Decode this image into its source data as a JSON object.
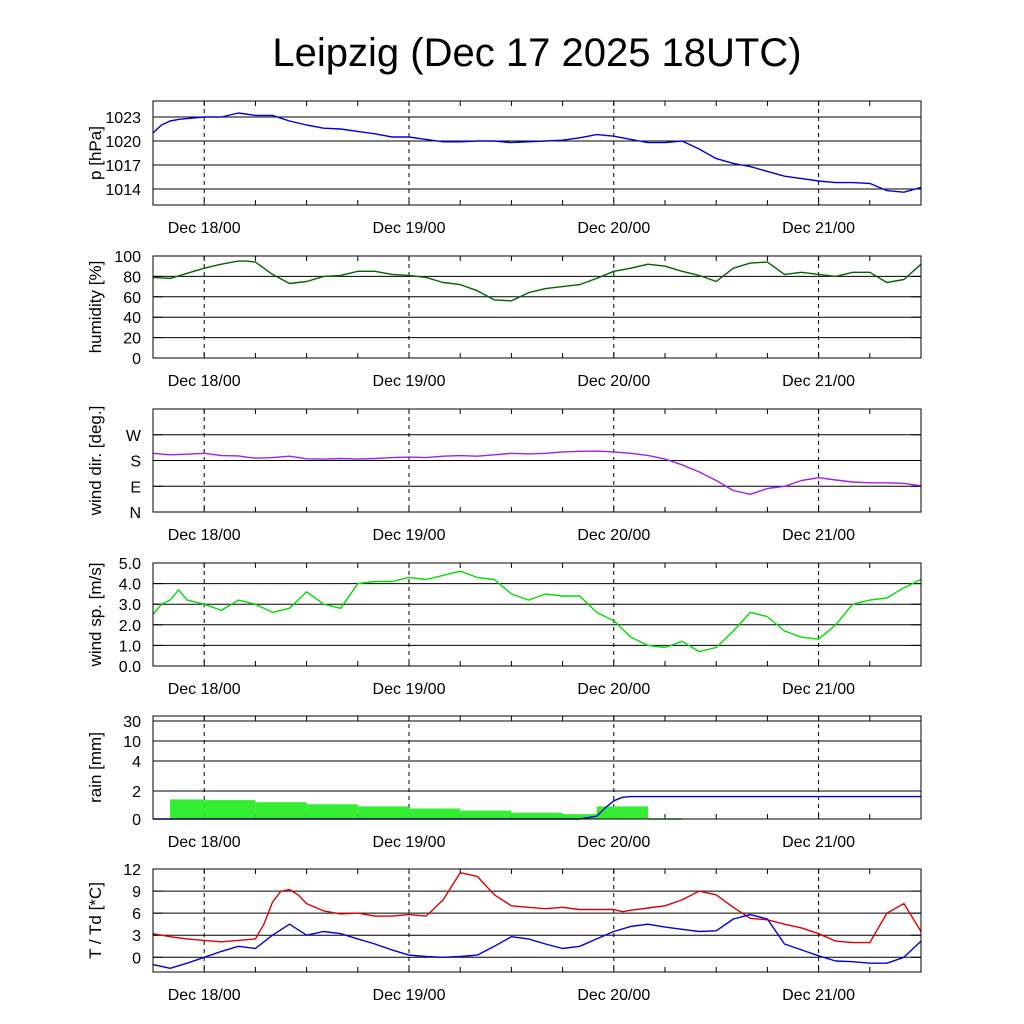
{
  "title": "Leipzig (Dec 17 2025 18UTC)",
  "colors": {
    "pressure": "#0000dd",
    "humidity": "#006400",
    "wind_dir": "#a020f0",
    "wind_speed": "#00dd00",
    "rain_bars": "#33ee33",
    "rain_cum": "#0000dd",
    "temperature": "#dd0000",
    "dewpoint": "#0000dd"
  },
  "chart_data": [
    {
      "id": "pressure",
      "type": "line",
      "ylabel": "p [hPa]",
      "ylim": [
        1012,
        1025
      ],
      "yticks": [
        1014,
        1017,
        1020,
        1023
      ],
      "ytick_labels": [
        "1014",
        "1017",
        "1020",
        "1023"
      ],
      "xlabel": "",
      "x_range_hours": [
        -6,
        84
      ],
      "x_ticks": [
        0,
        24,
        48,
        72
      ],
      "x_tick_labels": [
        "Dec 18/00",
        "Dec 19/00",
        "Dec 20/00",
        "Dec 21/00"
      ],
      "series": [
        {
          "name": "pressure",
          "color_key": "pressure",
          "x": [
            -6,
            -5,
            -4,
            -3,
            -2,
            0,
            2,
            4,
            6,
            8,
            10,
            12,
            14,
            16,
            18,
            20,
            22,
            24,
            26,
            28,
            30,
            32,
            34,
            36,
            38,
            40,
            42,
            44,
            46,
            48,
            50,
            52,
            54,
            56,
            58,
            60,
            62,
            64,
            66,
            68,
            70,
            72,
            74,
            76,
            78,
            80,
            82,
            84
          ],
          "values": [
            1021.0,
            1022.0,
            1022.5,
            1022.7,
            1022.8,
            1023.0,
            1023.0,
            1023.5,
            1023.2,
            1023.2,
            1022.5,
            1022.0,
            1021.6,
            1021.5,
            1021.2,
            1020.9,
            1020.5,
            1020.5,
            1020.2,
            1019.9,
            1019.9,
            1020.0,
            1020.0,
            1019.8,
            1019.9,
            1020.0,
            1020.1,
            1020.4,
            1020.8,
            1020.6,
            1020.2,
            1019.8,
            1019.8,
            1020.0,
            1019.0,
            1017.8,
            1017.2,
            1016.8,
            1016.2,
            1015.6,
            1015.3,
            1015.0,
            1014.8,
            1014.8,
            1014.7,
            1013.8,
            1013.6,
            1014.2
          ]
        }
      ]
    },
    {
      "id": "humidity",
      "type": "line",
      "ylabel": "humidity [%]",
      "ylim": [
        0,
        100
      ],
      "yticks": [
        0,
        20,
        40,
        60,
        80,
        100
      ],
      "ytick_labels": [
        "0",
        "20",
        "40",
        "60",
        "80",
        "100"
      ],
      "x_range_hours": [
        -6,
        84
      ],
      "x_ticks": [
        0,
        24,
        48,
        72
      ],
      "x_tick_labels": [
        "Dec 18/00",
        "Dec 19/00",
        "Dec 20/00",
        "Dec 21/00"
      ],
      "series": [
        {
          "name": "humidity",
          "color_key": "humidity",
          "x": [
            -6,
            -4,
            -2,
            0,
            2,
            4,
            5,
            6,
            8,
            10,
            12,
            14,
            16,
            18,
            20,
            22,
            24,
            26,
            28,
            30,
            32,
            34,
            36,
            38,
            40,
            42,
            44,
            46,
            48,
            50,
            52,
            54,
            56,
            58,
            60,
            62,
            64,
            66,
            68,
            70,
            72,
            74,
            76,
            78,
            80,
            82,
            84
          ],
          "values": [
            79,
            78,
            83,
            88,
            92,
            95,
            95,
            94,
            82,
            73,
            75,
            80,
            81,
            85,
            85,
            82,
            81,
            79,
            74,
            72,
            66,
            57,
            56,
            64,
            68,
            70,
            72,
            78,
            85,
            88,
            92,
            90,
            85,
            81,
            75,
            88,
            93,
            94,
            82,
            84,
            82,
            80,
            84,
            84,
            74,
            77,
            92
          ]
        }
      ]
    },
    {
      "id": "wind_dir",
      "type": "line",
      "ylabel": "wind dir. [deg.]",
      "ylim": [
        0,
        360
      ],
      "yticks": [
        0,
        90,
        180,
        270
      ],
      "ytick_labels": [
        "N",
        "E",
        "S",
        "W"
      ],
      "x_range_hours": [
        -6,
        84
      ],
      "x_ticks": [
        0,
        24,
        48,
        72
      ],
      "x_tick_labels": [
        "Dec 18/00",
        "Dec 19/00",
        "Dec 20/00",
        "Dec 21/00"
      ],
      "series": [
        {
          "name": "wind direction",
          "color_key": "wind_dir",
          "x": [
            -6,
            -4,
            -2,
            0,
            2,
            4,
            6,
            8,
            10,
            12,
            14,
            16,
            18,
            20,
            22,
            24,
            26,
            28,
            30,
            32,
            34,
            36,
            38,
            40,
            42,
            44,
            46,
            48,
            50,
            52,
            54,
            56,
            58,
            60,
            62,
            64,
            66,
            68,
            70,
            72,
            74,
            76,
            78,
            80,
            82,
            84
          ],
          "values": [
            205,
            200,
            202,
            205,
            197,
            196,
            188,
            190,
            195,
            186,
            185,
            187,
            185,
            187,
            190,
            192,
            190,
            195,
            197,
            195,
            200,
            205,
            203,
            205,
            210,
            212,
            213,
            210,
            205,
            198,
            185,
            165,
            140,
            110,
            75,
            62,
            82,
            90,
            110,
            120,
            112,
            105,
            102,
            102,
            100,
            92
          ]
        }
      ]
    },
    {
      "id": "wind_speed",
      "type": "line",
      "ylabel": "wind sp. [m/s]",
      "ylim": [
        0,
        5
      ],
      "yticks": [
        0,
        1,
        2,
        3,
        4,
        5
      ],
      "ytick_labels": [
        "0.0",
        "1.0",
        "2.0",
        "3.0",
        "4.0",
        "5.0"
      ],
      "x_range_hours": [
        -6,
        84
      ],
      "x_ticks": [
        0,
        24,
        48,
        72
      ],
      "x_tick_labels": [
        "Dec 18/00",
        "Dec 19/00",
        "Dec 20/00",
        "Dec 21/00"
      ],
      "series": [
        {
          "name": "wind speed",
          "color_key": "wind_speed",
          "x": [
            -6,
            -5,
            -4,
            -3,
            -2,
            0,
            2,
            4,
            6,
            8,
            10,
            12,
            14,
            16,
            18,
            20,
            22,
            24,
            26,
            28,
            30,
            32,
            34,
            36,
            38,
            40,
            42,
            44,
            46,
            48,
            50,
            52,
            54,
            56,
            58,
            60,
            62,
            64,
            66,
            68,
            70,
            72,
            74,
            76,
            78,
            80,
            82,
            84
          ],
          "values": [
            2.5,
            3.0,
            3.2,
            3.7,
            3.2,
            3.0,
            2.7,
            3.2,
            3.0,
            2.6,
            2.8,
            3.6,
            3.0,
            2.8,
            4.0,
            4.1,
            4.1,
            4.3,
            4.2,
            4.4,
            4.6,
            4.3,
            4.2,
            3.5,
            3.2,
            3.5,
            3.4,
            3.4,
            2.6,
            2.2,
            1.4,
            1.0,
            0.9,
            1.2,
            0.7,
            0.9,
            1.7,
            2.6,
            2.4,
            1.7,
            1.4,
            1.3,
            2.0,
            3.0,
            3.2,
            3.3,
            3.8,
            4.2
          ]
        }
      ]
    },
    {
      "id": "rain",
      "type": "bar",
      "ylabel": "rain [mm]",
      "ylim": [
        0,
        30
      ],
      "yticks": [
        0,
        2,
        4,
        10,
        30
      ],
      "ytick_labels": [
        "0",
        "2",
        "4",
        "10",
        "30"
      ],
      "y_scale": "piecewise",
      "x_range_hours": [
        -6,
        84
      ],
      "x_ticks": [
        0,
        24,
        48,
        72
      ],
      "x_tick_labels": [
        "Dec 18/00",
        "Dec 19/00",
        "Dec 20/00",
        "Dec 21/00"
      ],
      "bars": [
        {
          "x": -4,
          "x_end": 0,
          "value": 1.4
        },
        {
          "x": 0,
          "x_end": 6,
          "value": 1.35
        },
        {
          "x": 6,
          "x_end": 12,
          "value": 1.2
        },
        {
          "x": 12,
          "x_end": 18,
          "value": 1.05
        },
        {
          "x": 18,
          "x_end": 24,
          "value": 0.9
        },
        {
          "x": 24,
          "x_end": 30,
          "value": 0.75
        },
        {
          "x": 30,
          "x_end": 36,
          "value": 0.6
        },
        {
          "x": 36,
          "x_end": 42,
          "value": 0.45
        },
        {
          "x": 42,
          "x_end": 46,
          "value": 0.35
        },
        {
          "x": 46,
          "x_end": 52,
          "value": 0.9
        },
        {
          "x": 52,
          "x_end": 56,
          "value": 0.05
        }
      ],
      "series": [
        {
          "name": "accumulated rain",
          "color_key": "rain_cum",
          "x": [
            -6,
            44,
            46,
            47,
            48,
            49,
            50,
            52,
            84
          ],
          "values": [
            0,
            0,
            0.2,
            0.8,
            1.3,
            1.55,
            1.6,
            1.6,
            1.6
          ]
        }
      ]
    },
    {
      "id": "temperature",
      "type": "line",
      "ylabel": "T / Td [*C]",
      "ylim": [
        -2,
        12
      ],
      "yticks": [
        0,
        3,
        6,
        9,
        12
      ],
      "ytick_labels": [
        "0",
        "3",
        "6",
        "9",
        "12"
      ],
      "x_range_hours": [
        -6,
        84
      ],
      "x_ticks": [
        0,
        24,
        48,
        72
      ],
      "x_tick_labels": [
        "Dec 18/00",
        "Dec 19/00",
        "Dec 20/00",
        "Dec 21/00"
      ],
      "series": [
        {
          "name": "T",
          "color_key": "temperature",
          "x": [
            -6,
            -4,
            -2,
            0,
            2,
            4,
            6,
            7,
            8,
            9,
            10,
            11,
            12,
            14,
            16,
            18,
            20,
            22,
            24,
            26,
            28,
            30,
            32,
            34,
            36,
            38,
            40,
            42,
            44,
            46,
            48,
            49,
            50,
            52,
            54,
            56,
            58,
            60,
            62,
            64,
            66,
            68,
            70,
            72,
            74,
            76,
            78,
            80,
            82,
            84
          ],
          "values": [
            3.2,
            2.8,
            2.5,
            2.3,
            2.1,
            2.3,
            2.5,
            4.5,
            7.5,
            9.0,
            9.2,
            8.5,
            7.3,
            6.3,
            5.9,
            6.0,
            5.6,
            5.6,
            5.8,
            5.6,
            7.8,
            11.5,
            11.0,
            8.5,
            7.0,
            6.8,
            6.6,
            6.8,
            6.5,
            6.5,
            6.5,
            6.2,
            6.4,
            6.7,
            7.0,
            7.8,
            9.0,
            8.5,
            6.8,
            5.3,
            5.1,
            4.5,
            4.0,
            3.2,
            2.2,
            2.0,
            2.0,
            6.0,
            7.3,
            3.5
          ]
        },
        {
          "name": "Td",
          "color_key": "dewpoint",
          "x": [
            -6,
            -4,
            -2,
            0,
            2,
            4,
            6,
            8,
            10,
            12,
            14,
            16,
            18,
            20,
            22,
            24,
            26,
            28,
            30,
            32,
            34,
            36,
            38,
            40,
            42,
            44,
            46,
            48,
            50,
            52,
            54,
            56,
            58,
            60,
            62,
            64,
            66,
            68,
            70,
            72,
            74,
            76,
            78,
            80,
            82,
            84
          ],
          "values": [
            -1.0,
            -1.5,
            -0.8,
            0.0,
            0.8,
            1.5,
            1.2,
            3.0,
            4.5,
            3.0,
            3.5,
            3.2,
            2.5,
            1.8,
            1.0,
            0.3,
            0.1,
            0.0,
            0.1,
            0.3,
            1.5,
            2.8,
            2.5,
            1.8,
            1.2,
            1.5,
            2.5,
            3.5,
            4.2,
            4.5,
            4.1,
            3.8,
            3.5,
            3.6,
            5.2,
            5.8,
            5.2,
            1.8,
            1.0,
            0.2,
            -0.5,
            -0.6,
            -0.8,
            -0.8,
            0.0,
            2.2
          ]
        }
      ]
    }
  ]
}
